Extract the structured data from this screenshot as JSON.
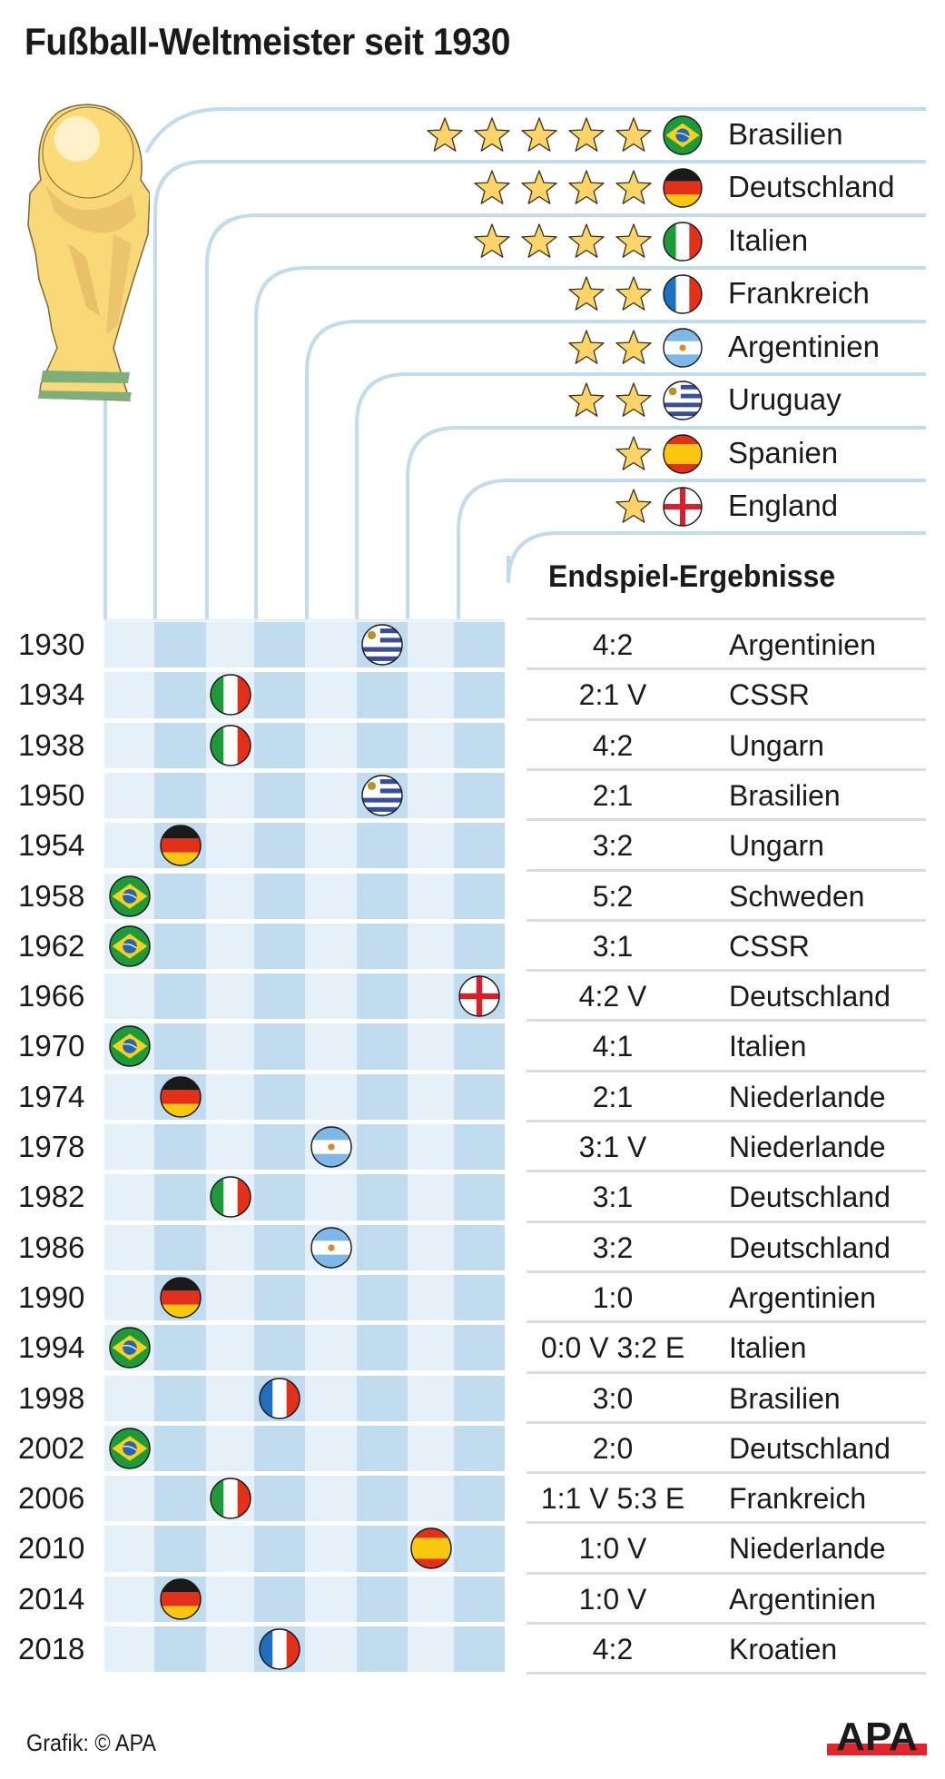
{
  "title": "Fußball-Weltmeister seit 1930",
  "results_heading": "Endspiel-Ergebnisse",
  "footer_credit": "Grafik: © APA",
  "logo_text": "APA",
  "colors": {
    "line": "#c3dbee",
    "band_light": "#e5f0f9",
    "band_dark": "#c2dcef",
    "star_fill": "#fcd468",
    "star_stroke": "#3a3020",
    "logo_red": "#e3242b",
    "text": "#1a1a1a"
  },
  "countries": [
    {
      "name": "Brasilien",
      "titles": 5,
      "flag": "flag-brazil"
    },
    {
      "name": "Deutschland",
      "titles": 4,
      "flag": "flag-germany"
    },
    {
      "name": "Italien",
      "titles": 4,
      "flag": "flag-italy"
    },
    {
      "name": "Frankreich",
      "titles": 2,
      "flag": "flag-france"
    },
    {
      "name": "Argentinien",
      "titles": 2,
      "flag": "flag-argentina"
    },
    {
      "name": "Uruguay",
      "titles": 2,
      "flag": "flag-uruguay"
    },
    {
      "name": "Spanien",
      "titles": 1,
      "flag": "flag-spain"
    },
    {
      "name": "England",
      "titles": 1,
      "flag": "flag-england"
    }
  ],
  "chart_data": {
    "type": "table",
    "title": "Fußball-Weltmeister seit 1930",
    "columns": [
      "Brasilien",
      "Deutschland",
      "Italien",
      "Frankreich",
      "Argentinien",
      "Uruguay",
      "Spanien",
      "England"
    ],
    "titles_per_country": [
      5,
      4,
      4,
      2,
      2,
      2,
      1,
      1
    ],
    "results_header": "Endspiel-Ergebnisse",
    "finals": [
      {
        "year": "1930",
        "winner": "Uruguay",
        "score": "4:2",
        "opponent": "Argentinien"
      },
      {
        "year": "1934",
        "winner": "Italien",
        "score": "2:1 V",
        "opponent": "CSSR"
      },
      {
        "year": "1938",
        "winner": "Italien",
        "score": "4:2",
        "opponent": "Ungarn"
      },
      {
        "year": "1950",
        "winner": "Uruguay",
        "score": "2:1",
        "opponent": "Brasilien"
      },
      {
        "year": "1954",
        "winner": "Deutschland",
        "score": "3:2",
        "opponent": "Ungarn"
      },
      {
        "year": "1958",
        "winner": "Brasilien",
        "score": "5:2",
        "opponent": "Schweden"
      },
      {
        "year": "1962",
        "winner": "Brasilien",
        "score": "3:1",
        "opponent": "CSSR"
      },
      {
        "year": "1966",
        "winner": "England",
        "score": "4:2 V",
        "opponent": "Deutschland"
      },
      {
        "year": "1970",
        "winner": "Brasilien",
        "score": "4:1",
        "opponent": "Italien"
      },
      {
        "year": "1974",
        "winner": "Deutschland",
        "score": "2:1",
        "opponent": "Niederlande"
      },
      {
        "year": "1978",
        "winner": "Argentinien",
        "score": "3:1 V",
        "opponent": "Niederlande"
      },
      {
        "year": "1982",
        "winner": "Italien",
        "score": "3:1",
        "opponent": "Deutschland"
      },
      {
        "year": "1986",
        "winner": "Argentinien",
        "score": "3:2",
        "opponent": "Deutschland"
      },
      {
        "year": "1990",
        "winner": "Deutschland",
        "score": "1:0",
        "opponent": "Argentinien"
      },
      {
        "year": "1994",
        "winner": "Brasilien",
        "score": "0:0 V 3:2 E",
        "opponent": "Italien"
      },
      {
        "year": "1998",
        "winner": "Frankreich",
        "score": "3:0",
        "opponent": "Brasilien"
      },
      {
        "year": "2002",
        "winner": "Brasilien",
        "score": "2:0",
        "opponent": "Deutschland"
      },
      {
        "year": "2006",
        "winner": "Italien",
        "score": "1:1 V 5:3 E",
        "opponent": "Frankreich"
      },
      {
        "year": "2010",
        "winner": "Spanien",
        "score": "1:0 V",
        "opponent": "Niederlande"
      },
      {
        "year": "2014",
        "winner": "Deutschland",
        "score": "1:0 V",
        "opponent": "Argentinien"
      },
      {
        "year": "2018",
        "winner": "Frankreich",
        "score": "4:2",
        "opponent": "Kroatien"
      }
    ]
  }
}
